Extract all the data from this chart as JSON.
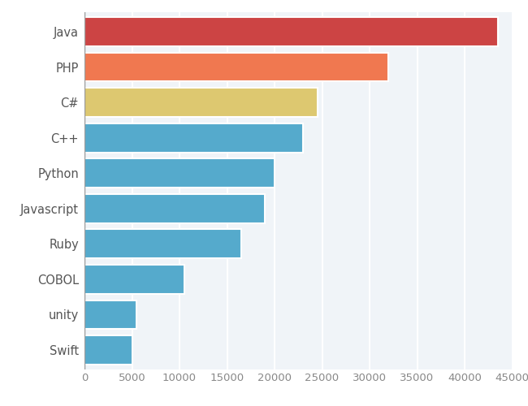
{
  "categories": [
    "Java",
    "PHP",
    "C#",
    "C++",
    "Python",
    "Javascript",
    "Ruby",
    "COBOL",
    "unity",
    "Swift"
  ],
  "values": [
    43500,
    32000,
    24500,
    23000,
    20000,
    19000,
    16500,
    10500,
    5500,
    5000
  ],
  "colors": [
    "#cc4444",
    "#f07850",
    "#ddc870",
    "#55aacc",
    "#55aacc",
    "#55aacc",
    "#55aacc",
    "#55aacc",
    "#55aacc",
    "#55aacc"
  ],
  "xlim": [
    0,
    45000
  ],
  "xticks": [
    0,
    5000,
    10000,
    15000,
    20000,
    25000,
    30000,
    35000,
    40000,
    45000
  ],
  "xtick_labels": [
    "0",
    "5000",
    "10000",
    "15000",
    "20000",
    "25000",
    "30000",
    "35000",
    "40000",
    "45000"
  ],
  "background_color": "#ffffff",
  "plot_bg_color": "#f0f4f8",
  "bar_height": 0.82,
  "grid_color": "#ffffff",
  "tick_label_fontsize": 9.5,
  "ylabel_fontsize": 10.5
}
